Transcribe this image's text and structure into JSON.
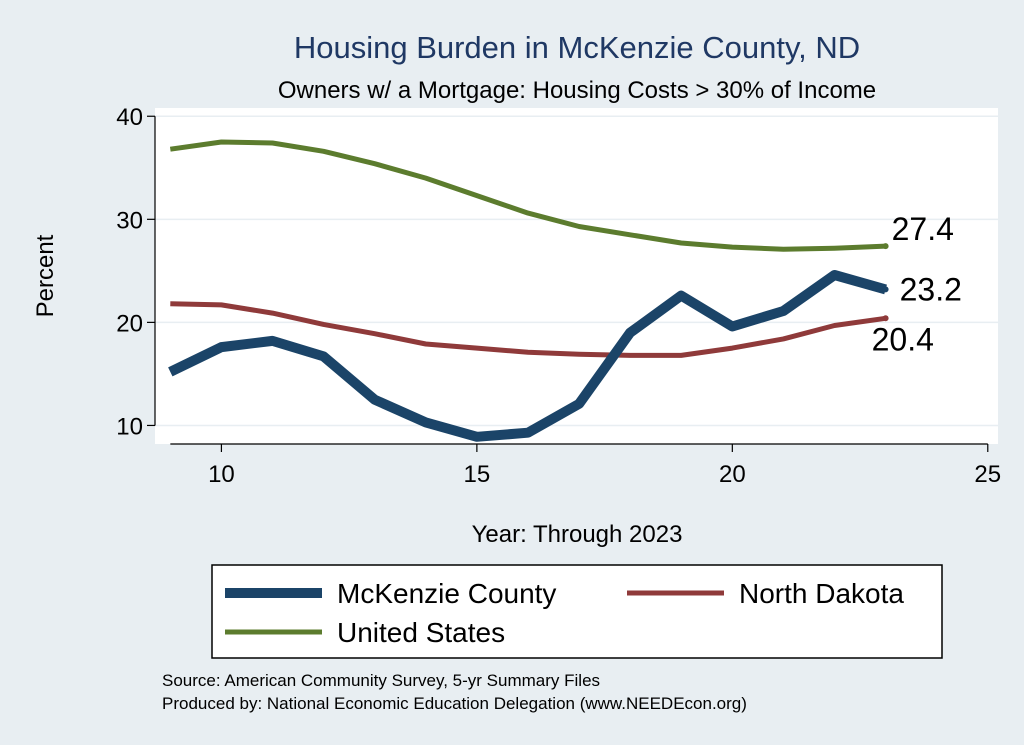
{
  "chart_data": {
    "type": "line",
    "title": "Housing Burden in McKenzie County, ND",
    "subtitle": "Owners w/ a Mortgage: Housing Costs > 30% of Income",
    "xlabel": "Year: Through 2023",
    "ylabel": "Percent",
    "xlim": [
      8.7,
      25.2
    ],
    "ylim": [
      8.2,
      40.8
    ],
    "xticks": [
      10,
      15,
      20,
      25
    ],
    "yticks": [
      10,
      20,
      30,
      40
    ],
    "x": [
      9,
      10,
      11,
      12,
      13,
      14,
      15,
      16,
      17,
      18,
      19,
      20,
      21,
      22,
      23
    ],
    "series": [
      {
        "name": "McKenzie County",
        "color": "#1b4468",
        "values": [
          15.2,
          17.6,
          18.2,
          16.7,
          12.5,
          10.3,
          8.9,
          9.3,
          12.1,
          19.0,
          22.6,
          19.6,
          21.1,
          24.6,
          23.2
        ],
        "end_label": "23.2"
      },
      {
        "name": "North Dakota",
        "color": "#8f3a3a",
        "values": [
          21.8,
          21.7,
          20.9,
          19.8,
          18.9,
          17.9,
          17.5,
          17.1,
          16.9,
          16.8,
          16.8,
          17.5,
          18.4,
          19.7,
          20.4
        ],
        "end_label": "20.4"
      },
      {
        "name": "United States",
        "color": "#5c7c2e",
        "values": [
          36.8,
          37.5,
          37.4,
          36.6,
          35.4,
          34.0,
          32.3,
          30.6,
          29.3,
          28.5,
          27.7,
          27.3,
          27.1,
          27.2,
          27.4
        ],
        "end_label": "27.4"
      }
    ],
    "legend_position": "bottom"
  },
  "footer": {
    "source": "Source: American Community Survey, 5-yr Summary Files",
    "produced_by": "Produced by: National Economic Education Delegation (www.NEEDEcon.org)"
  }
}
